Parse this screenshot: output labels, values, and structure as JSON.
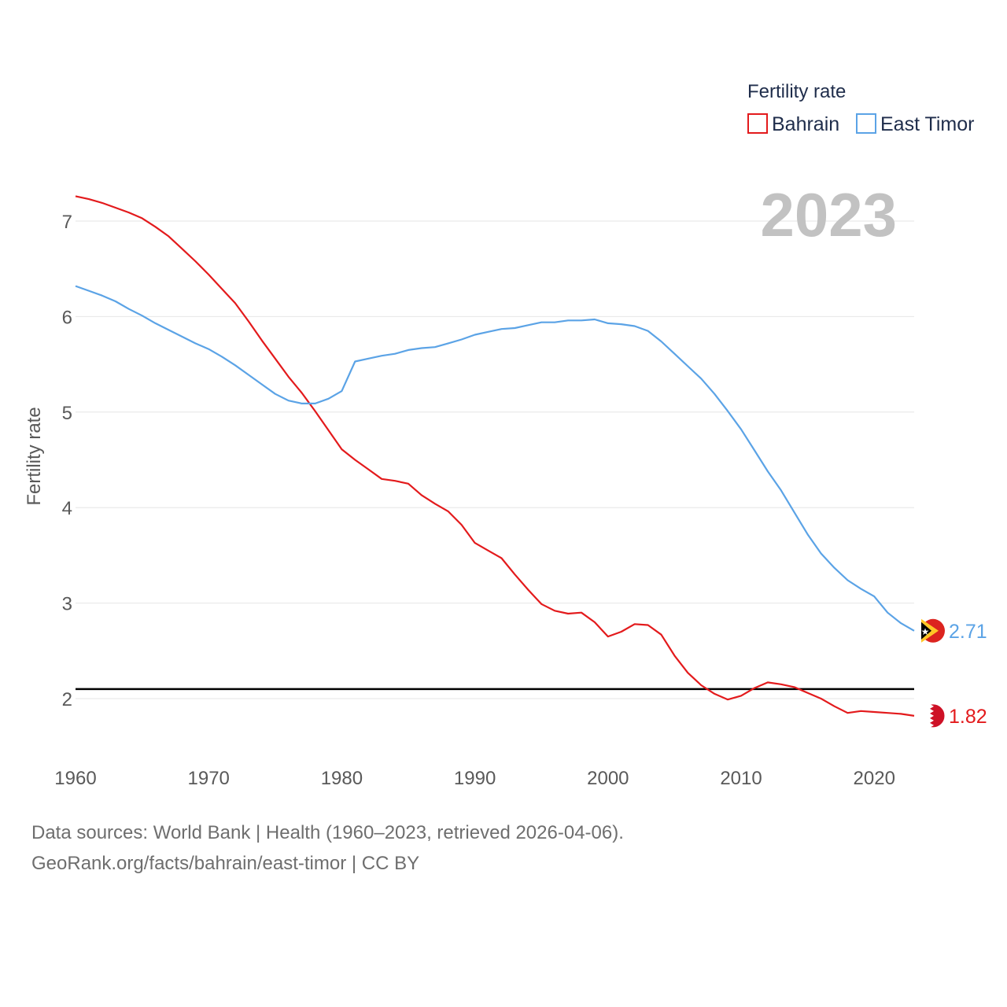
{
  "chart_data": {
    "type": "line",
    "ylabel": "Fertility rate",
    "year_display": "2023",
    "xlim": [
      1960,
      2023
    ],
    "ylim": [
      1.5,
      7.4
    ],
    "x_ticks": [
      1960,
      1970,
      1980,
      1990,
      2000,
      2010,
      2020
    ],
    "y_ticks": [
      2,
      3,
      4,
      5,
      6,
      7
    ],
    "reference_line": 2.1,
    "legend": {
      "title": "Fertility rate",
      "position": "top-right"
    },
    "x": [
      1960,
      1961,
      1962,
      1963,
      1964,
      1965,
      1966,
      1967,
      1968,
      1969,
      1970,
      1971,
      1972,
      1973,
      1974,
      1975,
      1976,
      1977,
      1978,
      1979,
      1980,
      1981,
      1982,
      1983,
      1984,
      1985,
      1986,
      1987,
      1988,
      1989,
      1990,
      1991,
      1992,
      1993,
      1994,
      1995,
      1996,
      1997,
      1998,
      1999,
      2000,
      2001,
      2002,
      2003,
      2004,
      2005,
      2006,
      2007,
      2008,
      2009,
      2010,
      2011,
      2012,
      2013,
      2014,
      2015,
      2016,
      2017,
      2018,
      2019,
      2020,
      2021,
      2022,
      2023
    ],
    "series": [
      {
        "name": "Bahrain",
        "color": "#e31a1c",
        "end_label": "1.82",
        "flag": "bahrain-flag",
        "values": [
          7.26,
          7.23,
          7.19,
          7.14,
          7.09,
          7.03,
          6.94,
          6.84,
          6.71,
          6.58,
          6.44,
          6.29,
          6.14,
          5.95,
          5.75,
          5.56,
          5.37,
          5.2,
          5.01,
          4.81,
          4.61,
          4.5,
          4.4,
          4.3,
          4.28,
          4.25,
          4.13,
          4.04,
          3.96,
          3.82,
          3.63,
          3.55,
          3.47,
          3.3,
          3.14,
          2.99,
          2.92,
          2.89,
          2.9,
          2.8,
          2.65,
          2.7,
          2.78,
          2.77,
          2.67,
          2.45,
          2.27,
          2.14,
          2.05,
          1.99,
          2.03,
          2.11,
          2.17,
          2.15,
          2.12,
          2.06,
          2.0,
          1.92,
          1.85,
          1.87,
          1.86,
          1.85,
          1.84,
          1.82
        ]
      },
      {
        "name": "East Timor",
        "color": "#5ba3e6",
        "end_label": "2.71",
        "flag": "east-timor-flag",
        "values": [
          6.32,
          6.27,
          6.22,
          6.16,
          6.08,
          6.01,
          5.93,
          5.86,
          5.79,
          5.72,
          5.66,
          5.58,
          5.49,
          5.39,
          5.29,
          5.19,
          5.12,
          5.09,
          5.09,
          5.14,
          5.22,
          5.53,
          5.56,
          5.59,
          5.61,
          5.65,
          5.67,
          5.68,
          5.72,
          5.76,
          5.81,
          5.84,
          5.87,
          5.88,
          5.91,
          5.94,
          5.94,
          5.96,
          5.96,
          5.97,
          5.93,
          5.92,
          5.9,
          5.85,
          5.74,
          5.61,
          5.48,
          5.35,
          5.19,
          5.01,
          4.82,
          4.6,
          4.38,
          4.18,
          3.95,
          3.72,
          3.52,
          3.37,
          3.24,
          3.15,
          3.07,
          2.9,
          2.79,
          2.71
        ]
      }
    ]
  },
  "footer": {
    "sources": "Data sources: World Bank | Health (1960–2023, retrieved 2026-04-06).",
    "credit": "GeoRank.org/facts/bahrain/east-timor | CC BY"
  }
}
